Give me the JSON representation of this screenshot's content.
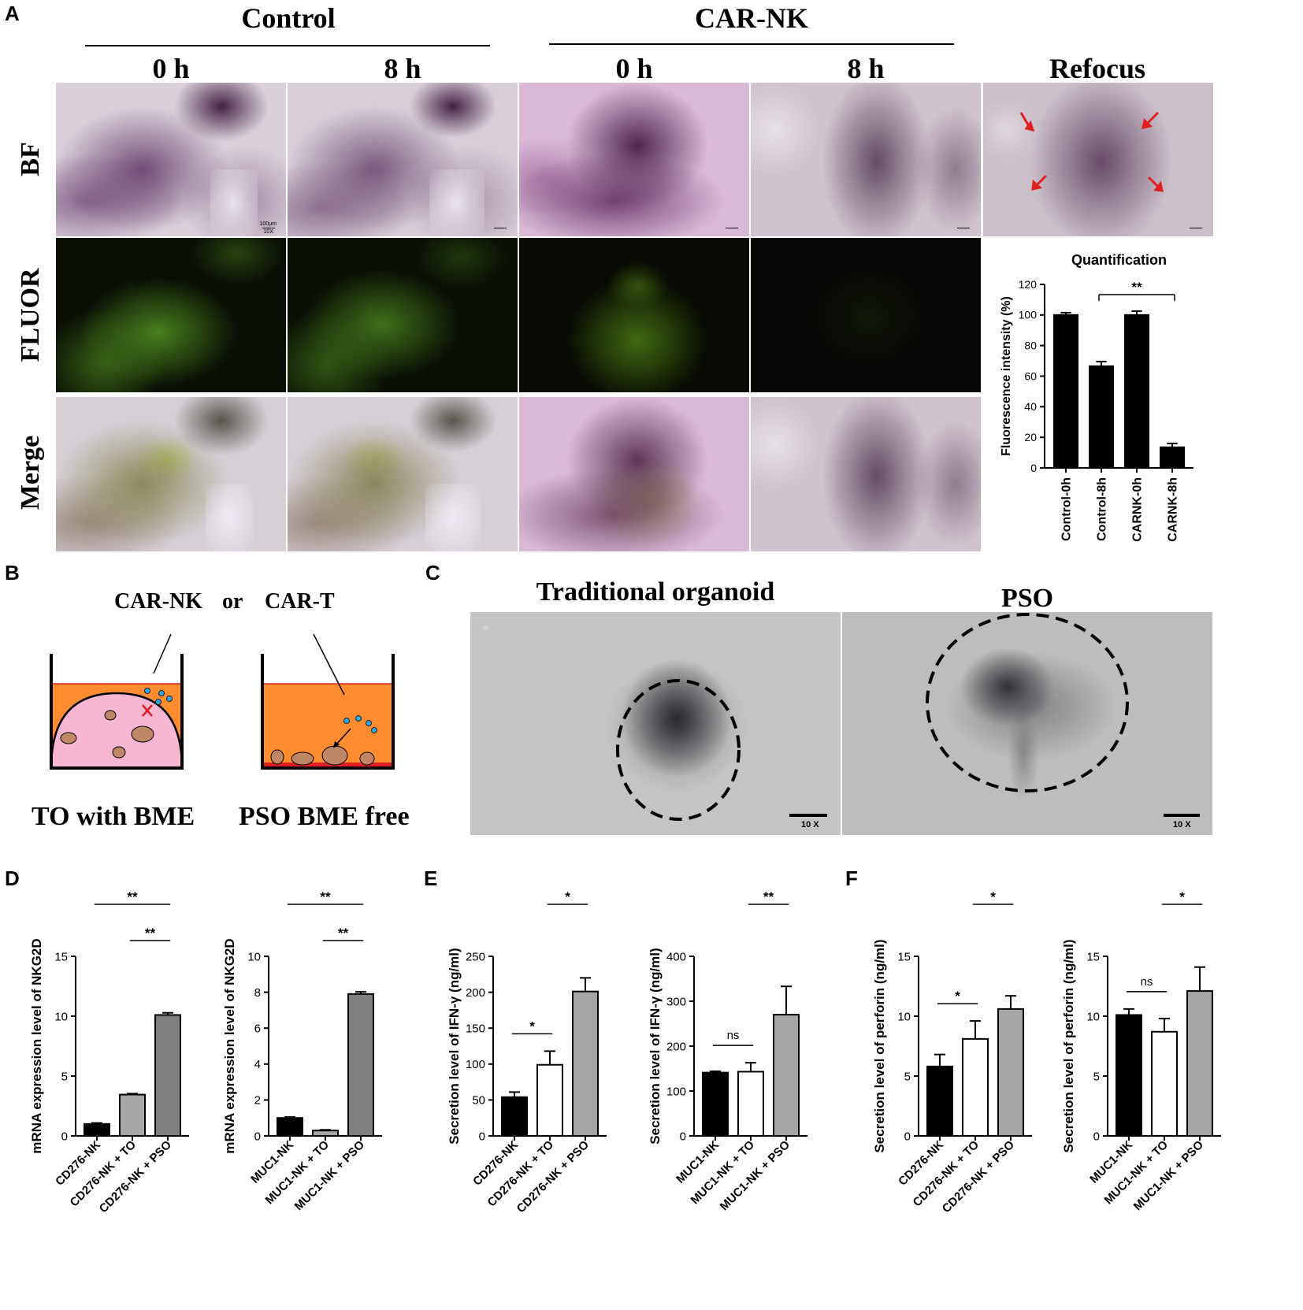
{
  "panels": {
    "A": "A",
    "B": "B",
    "C": "C",
    "D": "D",
    "E": "E",
    "F": "F"
  },
  "panelA": {
    "group_control": "Control",
    "group_carnk": "CAR-NK",
    "col_0h_a": "0 h",
    "col_8h_a": "8 h",
    "col_0h_b": "0 h",
    "col_8h_b": "8 h",
    "col_refocus": "Refocus",
    "row_bf": "BF",
    "row_fluor": "FLUOR",
    "row_merge": "Merge",
    "scale_text": "100μm",
    "scale_mag": "10X"
  },
  "panelB": {
    "car_nk": "CAR-NK",
    "or": "or",
    "car_t": "CAR-T",
    "left_caption": "TO with BME",
    "right_caption": "PSO BME free"
  },
  "panelC": {
    "left_title": "Traditional organoid",
    "right_title": "PSO",
    "mag_left": "10 X",
    "mag_right": "10 X"
  },
  "colors": {
    "black": "#000000",
    "gray_light": "#a6a6a6",
    "gray_dark": "#7f7f7f",
    "white": "#ffffff",
    "orange": "#ff8c2e",
    "pink": "#f8b6d2",
    "cell": "#c08766",
    "dot": "#2aa5e0",
    "red": "#e02020"
  },
  "chart_data": [
    {
      "id": "A-quant",
      "type": "bar",
      "title": "Quantification",
      "ylabel": "Fluorescence intensity (%)",
      "categories": [
        "Control-0h",
        "Control-8h",
        "CARNK-0h",
        "CARNK-8h"
      ],
      "values": [
        100,
        66.5,
        100,
        13.5
      ],
      "errors": [
        1.5,
        3,
        2.5,
        2.5
      ],
      "bar_colors": [
        "#000000",
        "#000000",
        "#000000",
        "#000000"
      ],
      "ylim": [
        0,
        120
      ],
      "yticks": [
        0,
        20,
        40,
        60,
        80,
        100,
        120
      ],
      "sig": [
        {
          "from": 1,
          "to": 3,
          "label": "**",
          "level": 1
        }
      ]
    },
    {
      "id": "D1",
      "type": "bar",
      "ylabel": "mRNA expression level of NKG2D",
      "categories": [
        "CD276-NK",
        "CD276-NK + TO",
        "CD276-NK + PSO"
      ],
      "values": [
        1.0,
        3.45,
        10.1
      ],
      "errors": [
        0.08,
        0.08,
        0.18
      ],
      "bar_colors": [
        "#000000",
        "#a6a6a6",
        "#7f7f7f"
      ],
      "ylim": [
        0,
        15
      ],
      "yticks": [
        0,
        5,
        10,
        15
      ],
      "sig": [
        {
          "from": 0,
          "to": 2,
          "label": "**",
          "level": 2
        },
        {
          "from": 1,
          "to": 2,
          "label": "**",
          "level": 1
        }
      ]
    },
    {
      "id": "D2",
      "type": "bar",
      "ylabel": "mRNA expression level of NKG2D",
      "categories": [
        "MUC1-NK",
        "MUC1-NK + TO",
        "MUC1-NK + PSO"
      ],
      "values": [
        1.0,
        0.3,
        7.9
      ],
      "errors": [
        0.05,
        0.04,
        0.12
      ],
      "bar_colors": [
        "#000000",
        "#a6a6a6",
        "#7f7f7f"
      ],
      "ylim": [
        0,
        10
      ],
      "yticks": [
        0,
        2,
        4,
        6,
        8,
        10
      ],
      "sig": [
        {
          "from": 0,
          "to": 2,
          "label": "**",
          "level": 2
        },
        {
          "from": 1,
          "to": 2,
          "label": "**",
          "level": 1
        }
      ]
    },
    {
      "id": "E1",
      "type": "bar",
      "ylabel": "Secretion level of IFN-γ (ng/ml)",
      "categories": [
        "CD276-NK",
        "CD276-NK + TO",
        "CD276-NK + PSO"
      ],
      "values": [
        54,
        99,
        201
      ],
      "errors": [
        7,
        19,
        19
      ],
      "bar_colors": [
        "#000000",
        "#ffffff",
        "#a6a6a6"
      ],
      "ylim": [
        0,
        250
      ],
      "yticks": [
        0,
        50,
        100,
        150,
        200,
        250
      ],
      "sig": [
        {
          "from": 0,
          "to": 2,
          "label": "**",
          "level": 3
        },
        {
          "from": 1,
          "to": 2,
          "label": "*",
          "level": 2
        },
        {
          "from": 0,
          "to": 1,
          "label": "*",
          "level": 0
        }
      ]
    },
    {
      "id": "E2",
      "type": "bar",
      "ylabel": "Secretion level of IFN-γ (ng/ml)",
      "categories": [
        "MUC1-NK",
        "MUC1-NK + TO",
        "MUC1-NK + PSO"
      ],
      "values": [
        141,
        143,
        270
      ],
      "errors": [
        3,
        20,
        63
      ],
      "bar_colors": [
        "#000000",
        "#ffffff",
        "#a6a6a6"
      ],
      "ylim": [
        0,
        400
      ],
      "yticks": [
        0,
        100,
        200,
        300,
        400
      ],
      "sig": [
        {
          "from": 0,
          "to": 2,
          "label": "**",
          "level": 3
        },
        {
          "from": 1,
          "to": 2,
          "label": "**",
          "level": 2
        },
        {
          "from": 0,
          "to": 1,
          "label": "ns",
          "level": 0
        }
      ]
    },
    {
      "id": "F1",
      "type": "bar",
      "ylabel": "Secretion level of perforin (ng/ml)",
      "categories": [
        "CD276-NK",
        "CD276-NK + TO",
        "CD276-NK + PSO"
      ],
      "values": [
        5.8,
        8.1,
        10.6
      ],
      "errors": [
        1.0,
        1.5,
        1.1
      ],
      "bar_colors": [
        "#000000",
        "#ffffff",
        "#a6a6a6"
      ],
      "ylim": [
        0,
        15
      ],
      "yticks": [
        0,
        5,
        10,
        15
      ],
      "sig": [
        {
          "from": 0,
          "to": 2,
          "label": "**",
          "level": 3
        },
        {
          "from": 1,
          "to": 2,
          "label": "*",
          "level": 2
        },
        {
          "from": 0,
          "to": 1,
          "label": "*",
          "level": 0
        }
      ]
    },
    {
      "id": "F2",
      "type": "bar",
      "ylabel": "Secretion level of perforin (ng/ml)",
      "categories": [
        "MUC1-NK",
        "MUC1-NK + TO",
        "MUC1-NK + PSO"
      ],
      "values": [
        10.1,
        8.7,
        12.1
      ],
      "errors": [
        0.5,
        1.1,
        2.0
      ],
      "bar_colors": [
        "#000000",
        "#ffffff",
        "#a6a6a6"
      ],
      "ylim": [
        0,
        15
      ],
      "yticks": [
        0,
        5,
        10,
        15
      ],
      "sig": [
        {
          "from": 0,
          "to": 2,
          "label": "*",
          "level": 3
        },
        {
          "from": 1,
          "to": 2,
          "label": "*",
          "level": 2
        },
        {
          "from": 0,
          "to": 1,
          "label": "ns",
          "level": 0
        }
      ]
    }
  ]
}
